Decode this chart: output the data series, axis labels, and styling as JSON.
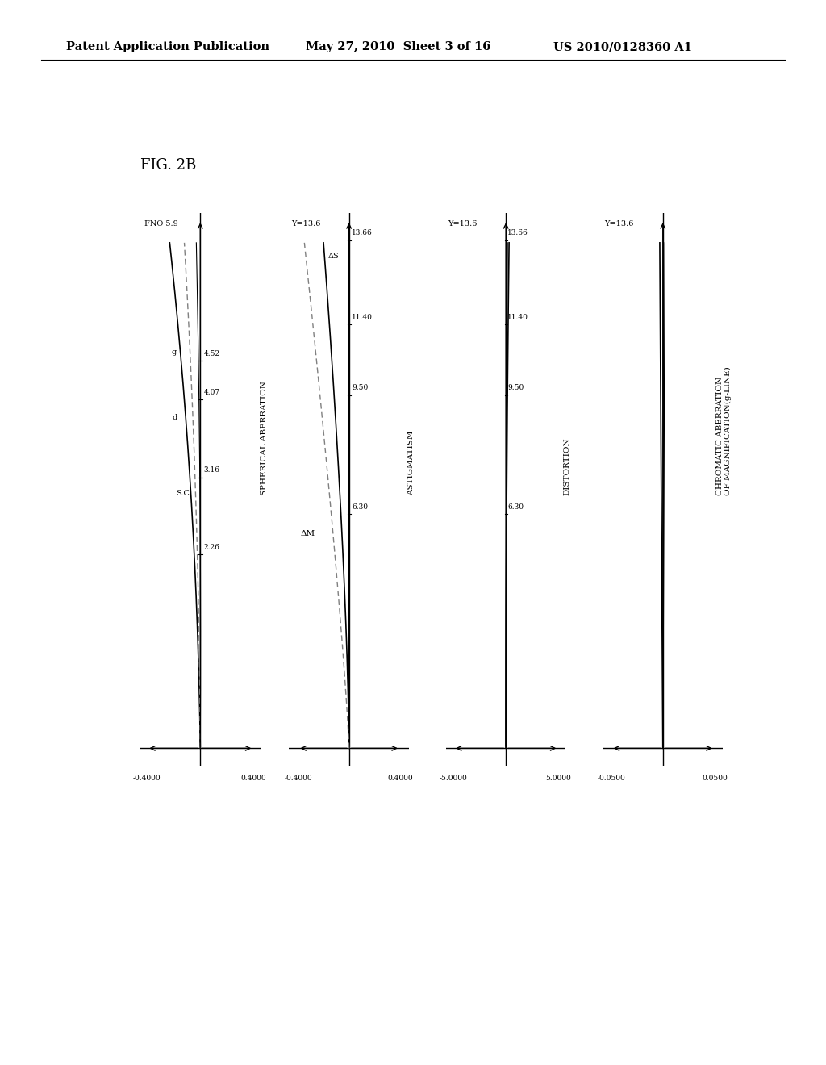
{
  "title": "FIG. 2B",
  "header_left": "Patent Application Publication",
  "header_mid": "May 27, 2010  Sheet 3 of 16",
  "header_right": "US 2010/0128360 A1",
  "charts": [
    {
      "xlabel_rotated": "SPHERICAL ABERRATION",
      "xlim": [
        -0.4,
        0.4
      ],
      "xticklabels": [
        "-0.4000",
        "0.4000"
      ],
      "ylabel_top": "FNO 5.9",
      "ytick_vals": [
        4.52,
        4.07,
        3.16,
        2.26
      ],
      "ytick_labels": [
        "4.52",
        "4.07",
        "3.16",
        "2.26"
      ],
      "ymax_fno": 5.9,
      "curve_labels": [
        "g",
        "d",
        "S.C"
      ]
    },
    {
      "xlabel_rotated": "ASTIGMATISM",
      "xlim": [
        -0.4,
        0.4
      ],
      "xticklabels": [
        "-0.4000",
        "0.4000"
      ],
      "ylabel_top": "Y=13.6",
      "ytick_vals": [
        13.66,
        11.4,
        9.5,
        6.3
      ],
      "ytick_labels": [
        "13.66",
        "11.40",
        "9.50",
        "6.30"
      ],
      "ymax_fno": 13.6,
      "curve_labels": [
        "ΔS",
        "ΔM"
      ]
    },
    {
      "xlabel_rotated": "DISTORTION",
      "xlim": [
        -5.0,
        5.0
      ],
      "xticklabels": [
        "-5.0000",
        "5.0000"
      ],
      "ylabel_top": "Y=13.6",
      "ytick_vals": [
        13.66,
        11.4,
        9.5,
        6.3
      ],
      "ytick_labels": [
        "13.66",
        "11.40",
        "9.50",
        "6.30"
      ],
      "ymax_fno": 13.6,
      "curve_labels": []
    },
    {
      "xlabel_rotated": "CHROMATIC ABERRATION\nOF MAGNIFICATION(g-LINE)",
      "xlim": [
        -0.05,
        0.05
      ],
      "xticklabels": [
        "-0.0500",
        "0.0500"
      ],
      "ylabel_top": "Y=13.6",
      "ytick_vals": [],
      "ytick_labels": [],
      "ymax_fno": 13.6,
      "curve_labels": []
    }
  ],
  "bg_color": "#ffffff"
}
